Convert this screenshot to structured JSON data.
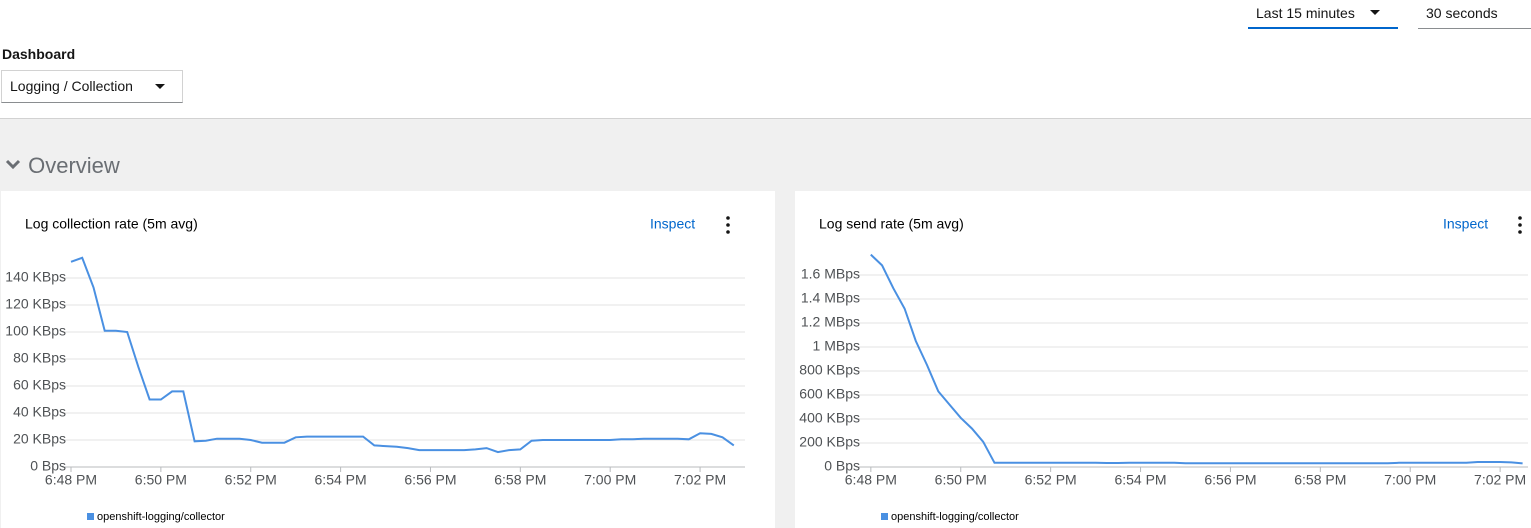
{
  "header": {
    "time_range": "Last 15 minutes",
    "refresh_interval": "30 seconds",
    "dashboard_label": "Dashboard",
    "dashboard": "Logging / Collection"
  },
  "section": "Overview",
  "chart_data": [
    {
      "type": "line",
      "title": "Log collection rate (5m avg)",
      "action": "Inspect",
      "grid": true,
      "x": [
        1128,
        1128.25,
        1128.5,
        1128.75,
        1129,
        1129.25,
        1129.5,
        1129.75,
        1130,
        1130.25,
        1130.5,
        1130.75,
        1131,
        1131.25,
        1131.5,
        1131.75,
        1132,
        1132.25,
        1132.5,
        1132.75,
        1133,
        1133.25,
        1133.5,
        1133.75,
        1134,
        1134.25,
        1134.5,
        1134.75,
        1135,
        1135.25,
        1135.5,
        1135.75,
        1136,
        1136.25,
        1136.5,
        1136.75,
        1137,
        1137.25,
        1137.5,
        1137.75,
        1138,
        1138.25,
        1138.5,
        1138.75,
        1139,
        1139.25,
        1139.5,
        1139.75,
        1140,
        1140.25,
        1140.5,
        1140.75,
        1141,
        1141.25,
        1141.5,
        1141.75,
        1142,
        1142.25,
        1142.5,
        1142.75
      ],
      "series": [
        {
          "name": "openshift-logging/collector",
          "color": "#4a90e2",
          "values": [
            152000,
            155000,
            133000,
            101000,
            101000,
            100000,
            74000,
            50000,
            50000,
            56000,
            56000,
            19000,
            19500,
            21000,
            21000,
            21000,
            20000,
            18000,
            18000,
            18000,
            22000,
            22500,
            22500,
            22500,
            22500,
            22500,
            22500,
            16000,
            15500,
            15000,
            14000,
            12500,
            12500,
            12500,
            12500,
            12500,
            13000,
            14000,
            11000,
            12500,
            13000,
            19500,
            20000,
            20000,
            20000,
            20000,
            20000,
            20000,
            20000,
            20500,
            20500,
            21000,
            21000,
            21000,
            21000,
            20500,
            25000,
            24500,
            22000,
            16000
          ]
        }
      ],
      "xlim": [
        1128,
        1143
      ],
      "xticks": [
        {
          "value": 1128,
          "label": "6:48 PM"
        },
        {
          "value": 1130,
          "label": "6:50 PM"
        },
        {
          "value": 1132,
          "label": "6:52 PM"
        },
        {
          "value": 1134,
          "label": "6:54 PM"
        },
        {
          "value": 1136,
          "label": "6:56 PM"
        },
        {
          "value": 1138,
          "label": "6:58 PM"
        },
        {
          "value": 1140,
          "label": "7:00 PM"
        },
        {
          "value": 1142,
          "label": "7:02 PM"
        }
      ],
      "ylim": [
        0,
        160000
      ],
      "yticks": [
        {
          "value": 0,
          "label": "0 Bps"
        },
        {
          "value": 20000,
          "label": "20 KBps"
        },
        {
          "value": 40000,
          "label": "40 KBps"
        },
        {
          "value": 60000,
          "label": "60 KBps"
        },
        {
          "value": 80000,
          "label": "80 KBps"
        },
        {
          "value": 100000,
          "label": "100 KBps"
        },
        {
          "value": 120000,
          "label": "120 KBps"
        },
        {
          "value": 140000,
          "label": "140 KBps"
        }
      ]
    },
    {
      "type": "line",
      "title": "Log send rate (5m avg)",
      "action": "Inspect",
      "grid": true,
      "x": [
        1128,
        1128.25,
        1128.5,
        1128.75,
        1129,
        1129.25,
        1129.5,
        1129.75,
        1130,
        1130.25,
        1130.5,
        1130.75,
        1131,
        1131.25,
        1131.5,
        1131.75,
        1132,
        1132.25,
        1132.5,
        1132.75,
        1133,
        1133.25,
        1133.5,
        1133.75,
        1134,
        1134.25,
        1134.5,
        1134.75,
        1135,
        1135.25,
        1135.5,
        1135.75,
        1136,
        1136.25,
        1136.5,
        1136.75,
        1137,
        1137.25,
        1137.5,
        1137.75,
        1138,
        1138.25,
        1138.5,
        1138.75,
        1139,
        1139.25,
        1139.5,
        1139.75,
        1140,
        1140.25,
        1140.5,
        1140.75,
        1141,
        1141.25,
        1141.5,
        1141.75,
        1142,
        1142.25,
        1142.5
      ],
      "series": [
        {
          "name": "openshift-logging/collector",
          "color": "#4a90e2",
          "values": [
            1770000,
            1680000,
            1490000,
            1320000,
            1050000,
            850000,
            630000,
            520000,
            410000,
            320000,
            210000,
            35000,
            35000,
            35000,
            35000,
            35000,
            35000,
            35000,
            35000,
            35000,
            35000,
            33000,
            33000,
            36000,
            36000,
            36000,
            36000,
            36000,
            32000,
            32000,
            32000,
            32000,
            32000,
            32000,
            32000,
            32000,
            32000,
            32000,
            32000,
            32000,
            32000,
            32000,
            32000,
            32000,
            32000,
            32000,
            32000,
            35000,
            35000,
            35000,
            35000,
            35000,
            35000,
            35000,
            42000,
            42000,
            42000,
            38000,
            30000
          ]
        }
      ],
      "xlim": [
        1127.87,
        1142.62
      ],
      "xticks": [
        {
          "value": 1128,
          "label": "6:48 PM"
        },
        {
          "value": 1130,
          "label": "6:50 PM"
        },
        {
          "value": 1132,
          "label": "6:52 PM"
        },
        {
          "value": 1134,
          "label": "6:54 PM"
        },
        {
          "value": 1136,
          "label": "6:56 PM"
        },
        {
          "value": 1138,
          "label": "6:58 PM"
        },
        {
          "value": 1140,
          "label": "7:00 PM"
        },
        {
          "value": 1142,
          "label": "7:02 PM"
        }
      ],
      "ylim": [
        0,
        1800000
      ],
      "yticks": [
        {
          "value": 0,
          "label": "0 Bps"
        },
        {
          "value": 200000,
          "label": "200 KBps"
        },
        {
          "value": 400000,
          "label": "400 KBps"
        },
        {
          "value": 600000,
          "label": "600 KBps"
        },
        {
          "value": 800000,
          "label": "800 KBps"
        },
        {
          "value": 1000000,
          "label": "1 MBps"
        },
        {
          "value": 1200000,
          "label": "1.2 MBps"
        },
        {
          "value": 1400000,
          "label": "1.4 MBps"
        },
        {
          "value": 1600000,
          "label": "1.6 MBps"
        }
      ]
    }
  ]
}
